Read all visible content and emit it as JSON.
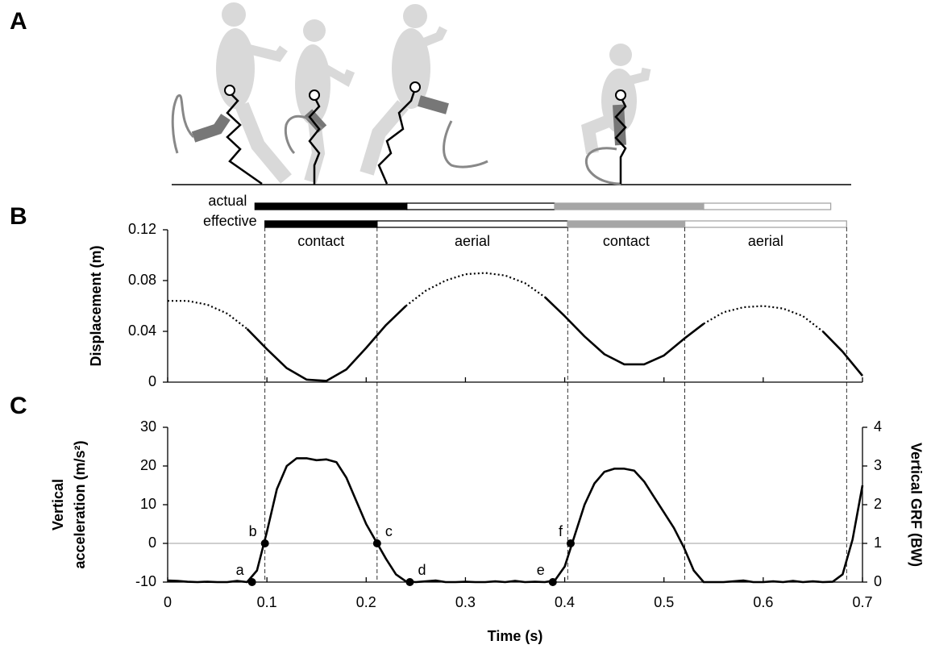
{
  "panel_letters": [
    "A",
    "B",
    "C"
  ],
  "phase_bars": {
    "rows": [
      {
        "label": "actual",
        "segments": [
          {
            "start": 0.088,
            "end": 0.241,
            "fill": "#000000",
            "stroke": "#000000"
          },
          {
            "start": 0.241,
            "end": 0.39,
            "fill": "#ffffff",
            "stroke": "#000000"
          },
          {
            "start": 0.39,
            "end": 0.54,
            "fill": "#a6a6a6",
            "stroke": "#a6a6a6"
          },
          {
            "start": 0.54,
            "end": 0.668,
            "fill": "#ffffff",
            "stroke": "#a6a6a6"
          }
        ]
      },
      {
        "label": "effective",
        "segments": [
          {
            "start": 0.098,
            "end": 0.211,
            "fill": "#000000",
            "stroke": "#000000",
            "label": "contact"
          },
          {
            "start": 0.211,
            "end": 0.403,
            "fill": "#ffffff",
            "stroke": "#000000",
            "label": "aerial"
          },
          {
            "start": 0.403,
            "end": 0.521,
            "fill": "#a6a6a6",
            "stroke": "#a6a6a6",
            "label": "contact"
          },
          {
            "start": 0.521,
            "end": 0.684,
            "fill": "#ffffff",
            "stroke": "#a6a6a6",
            "label": "aerial"
          }
        ]
      }
    ]
  },
  "chart_data": [
    {
      "type": "line",
      "y_label": "Displacement (m)",
      "x": [
        0,
        0.02,
        0.04,
        0.06,
        0.08,
        0.1,
        0.12,
        0.14,
        0.16,
        0.18,
        0.2,
        0.22,
        0.24,
        0.26,
        0.28,
        0.3,
        0.32,
        0.34,
        0.36,
        0.38,
        0.4,
        0.42,
        0.44,
        0.46,
        0.48,
        0.5,
        0.52,
        0.54,
        0.56,
        0.58,
        0.6,
        0.62,
        0.64,
        0.66,
        0.68,
        0.7
      ],
      "series": [
        {
          "color": "#000000",
          "style": "solid",
          "values": [
            null,
            null,
            null,
            null,
            0.042,
            0.026,
            0.011,
            0.002,
            0.001,
            0.01,
            0.027,
            0.045,
            0.06,
            null,
            null,
            null,
            null,
            null,
            null,
            0.067,
            0.052,
            0.036,
            0.022,
            0.014,
            0.014,
            0.021,
            0.034,
            0.046,
            null,
            null,
            null,
            null,
            null,
            0.04,
            0.024,
            0.005
          ]
        },
        {
          "color": "#000000",
          "style": "dotted",
          "values": [
            0.064,
            0.064,
            0.061,
            0.054,
            0.042,
            null,
            null,
            null,
            null,
            null,
            null,
            null,
            0.06,
            0.072,
            0.08,
            0.085,
            0.086,
            0.084,
            0.078,
            0.067,
            null,
            null,
            null,
            null,
            null,
            null,
            null,
            0.046,
            0.055,
            0.059,
            0.06,
            0.058,
            0.052,
            0.04,
            null,
            null
          ]
        }
      ],
      "xlim": [
        0,
        0.7
      ],
      "xticks": [
        0,
        0.1,
        0.2,
        0.3,
        0.4,
        0.5,
        0.6,
        0.7
      ],
      "xtick_labels": false,
      "ylim": [
        0,
        0.12
      ],
      "yticks": [
        0,
        0.04,
        0.08,
        0.12
      ],
      "grid": false
    },
    {
      "type": "line",
      "y_label": [
        "Vertical",
        "acceleration (m/s²)"
      ],
      "y2_label": "Vertical GRF (BW)",
      "x_label": "Time (s)",
      "x": [
        0,
        0.01,
        0.02,
        0.03,
        0.04,
        0.05,
        0.06,
        0.07,
        0.08,
        0.09,
        0.1,
        0.11,
        0.12,
        0.13,
        0.14,
        0.15,
        0.16,
        0.17,
        0.18,
        0.19,
        0.2,
        0.21,
        0.22,
        0.23,
        0.24,
        0.25,
        0.26,
        0.27,
        0.28,
        0.29,
        0.3,
        0.31,
        0.32,
        0.33,
        0.34,
        0.35,
        0.36,
        0.37,
        0.38,
        0.39,
        0.4,
        0.41,
        0.42,
        0.43,
        0.44,
        0.45,
        0.46,
        0.47,
        0.48,
        0.49,
        0.5,
        0.51,
        0.52,
        0.53,
        0.54,
        0.55,
        0.56,
        0.57,
        0.58,
        0.59,
        0.6,
        0.61,
        0.62,
        0.63,
        0.64,
        0.65,
        0.66,
        0.67,
        0.68,
        0.69,
        0.7
      ],
      "series": [
        {
          "color": "#000000",
          "style": "solid",
          "values": [
            -9.6,
            -9.7,
            -9.9,
            -10,
            -9.9,
            -10,
            -10,
            -9.7,
            -10,
            -7,
            3,
            14,
            20,
            22,
            22,
            21.5,
            21.7,
            21,
            17,
            11,
            5,
            0.5,
            -4,
            -8,
            -9.8,
            -10,
            -9.8,
            -9.6,
            -10,
            -10,
            -9.9,
            -10,
            -10,
            -9.8,
            -10,
            -9.7,
            -10,
            -9.9,
            -10,
            -9.6,
            -6,
            2,
            10,
            15.5,
            18.5,
            19.3,
            19.3,
            18.8,
            16,
            12,
            8,
            4,
            -1,
            -7,
            -10,
            -10,
            -10,
            -9.8,
            -9.6,
            -10,
            -10,
            -9.8,
            -10,
            -9.7,
            -10,
            -9.8,
            -10,
            -9.9,
            -8,
            1,
            15
          ]
        }
      ],
      "points": {
        "labels": [
          "a",
          "b",
          "c",
          "d",
          "e",
          "f"
        ],
        "x": [
          0.085,
          0.098,
          0.211,
          0.244,
          0.388,
          0.406
        ],
        "values": [
          -10,
          0,
          0,
          -10,
          -10,
          0
        ],
        "color": "#000000"
      },
      "xlim": [
        0,
        0.7
      ],
      "xticks": [
        0,
        0.1,
        0.2,
        0.3,
        0.4,
        0.5,
        0.6,
        0.7
      ],
      "xtick_labels": true,
      "ylim": [
        -10,
        30
      ],
      "yticks": [
        -10,
        0,
        10,
        20,
        30
      ],
      "y2lim": [
        0,
        4
      ],
      "y2ticks": [
        0,
        1,
        2,
        3,
        4
      ],
      "zero_line": true,
      "grid": false
    }
  ]
}
